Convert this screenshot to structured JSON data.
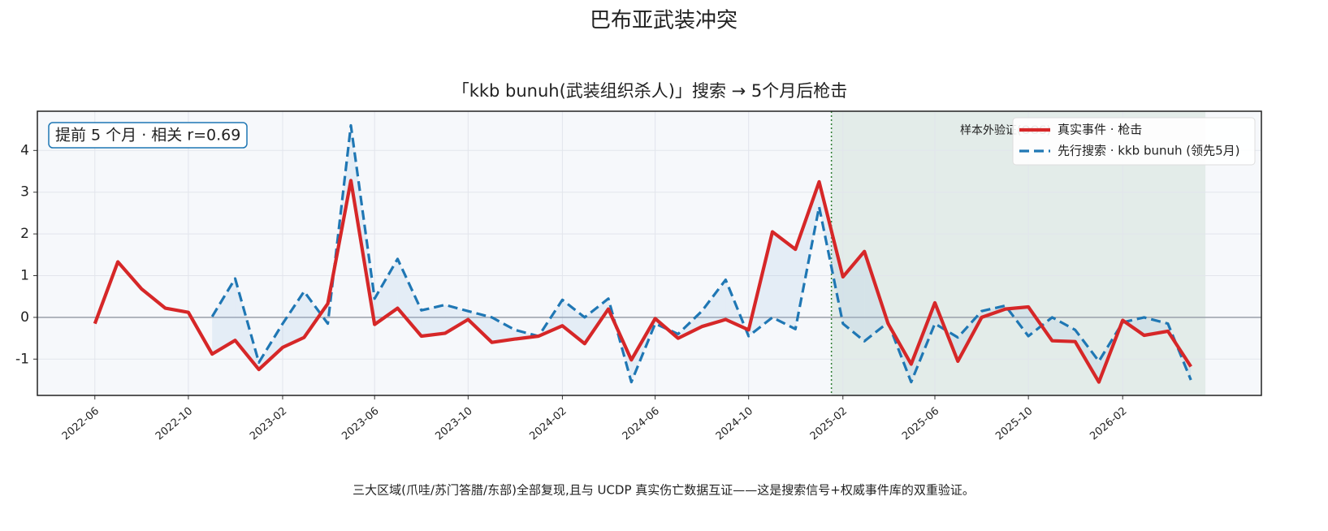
{
  "chart_data": {
    "type": "line",
    "title": "巴布亚武装冲突",
    "subtitle": "「kkb bunuh(武装组织杀人)」搜索 → 5个月后枪击",
    "annotation": "提前 5 个月 · 相关 r=0.69",
    "footer": "三大区域(爪哇/苏门答腊/东部)全部复现,且与 UCDP 真实伤亡数据互证——这是搜索信号+权威事件库的双重验证。",
    "x": [
      "2022-06",
      "2022-07",
      "2022-08",
      "2022-09",
      "2022-10",
      "2022-11",
      "2022-12",
      "2023-01",
      "2023-02",
      "2023-03",
      "2023-04",
      "2023-05",
      "2023-06",
      "2023-07",
      "2023-08",
      "2023-09",
      "2023-10",
      "2023-11",
      "2023-12",
      "2024-01",
      "2024-02",
      "2024-03",
      "2024-04",
      "2024-05",
      "2024-06",
      "2024-07",
      "2024-08",
      "2024-09",
      "2024-10",
      "2024-11",
      "2024-12",
      "2025-01",
      "2025-02",
      "2025-03",
      "2025-04",
      "2025-05",
      "2025-06",
      "2025-07",
      "2025-08",
      "2025-09",
      "2025-10",
      "2025-11",
      "2025-12",
      "2026-01",
      "2026-02",
      "2026-03",
      "2026-04",
      "2026-05"
    ],
    "series": [
      {
        "name": "真实事件 · 枪击",
        "color": "#d62728",
        "dash": false,
        "values": [
          -0.15,
          1.33,
          0.68,
          0.22,
          0.12,
          -0.88,
          -0.55,
          -1.25,
          -0.72,
          -0.48,
          0.33,
          3.28,
          -0.17,
          0.22,
          -0.45,
          -0.38,
          -0.05,
          -0.6,
          -0.52,
          -0.45,
          -0.2,
          -0.63,
          0.2,
          -1.02,
          -0.03,
          -0.5,
          -0.22,
          -0.05,
          -0.3,
          2.05,
          1.63,
          3.25,
          0.97,
          1.58,
          -0.15,
          -1.12,
          0.35,
          -1.05,
          0.0,
          0.2,
          0.25,
          -0.56,
          -0.58,
          -1.55,
          -0.07,
          -0.43,
          -0.33,
          -1.18
        ]
      },
      {
        "name": "先行搜索 · kkb bunuh (领先5月)",
        "color": "#1f77b4",
        "dash": true,
        "values": [
          null,
          null,
          null,
          null,
          null,
          0.02,
          0.93,
          -1.08,
          -0.15,
          0.62,
          -0.15,
          4.6,
          0.45,
          1.4,
          0.17,
          0.3,
          0.15,
          0.0,
          -0.3,
          -0.45,
          0.42,
          0.0,
          0.45,
          -1.55,
          -0.15,
          -0.4,
          0.15,
          0.9,
          -0.45,
          0.0,
          -0.28,
          2.65,
          -0.15,
          -0.57,
          -0.12,
          -1.55,
          -0.15,
          -0.48,
          0.15,
          0.28,
          -0.45,
          0.0,
          -0.3,
          -1.05,
          -0.12,
          0.0,
          -0.15,
          -1.5
        ]
      }
    ],
    "xlim": [
      "2022-03-18",
      "2026-08-01"
    ],
    "xticks": [
      "2022-06",
      "2022-10",
      "2023-02",
      "2023-06",
      "2023-10",
      "2024-02",
      "2024-06",
      "2024-10",
      "2025-02",
      "2025-06",
      "2025-10",
      "2026-02"
    ],
    "ylim": [
      -1.87,
      4.94
    ],
    "yticks": [
      -1,
      0,
      1,
      2,
      3,
      4
    ],
    "hline": 0,
    "shaded_region": {
      "start": "2025-01-17",
      "end": "2026-05-20",
      "label": "样本外验证(OOS)",
      "color": "#2e7d32"
    },
    "grid": true,
    "legend": "upper right"
  }
}
